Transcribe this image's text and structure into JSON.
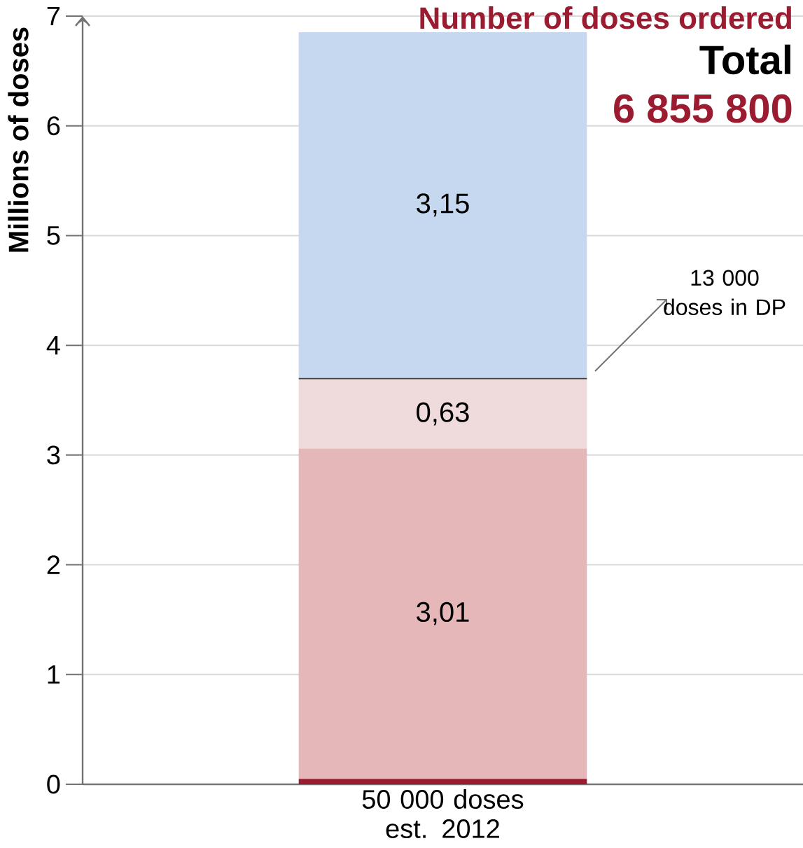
{
  "chart_data": {
    "type": "bar",
    "title": "Number of doses ordered",
    "ylabel": "Millions of doses",
    "categories": [
      "50 000 doses est. 2012"
    ],
    "series": [
      {
        "color": "#9b1c31",
        "values": [
          0.05
        ],
        "value_labels": [
          null
        ]
      },
      {
        "color": "#e5b7b8",
        "values": [
          3.01
        ],
        "value_labels": [
          "3,01"
        ]
      },
      {
        "color": "#f0dbdc",
        "values": [
          0.63
        ],
        "value_labels": [
          "0,63"
        ]
      },
      {
        "color": "#404040",
        "values": [
          0.013
        ],
        "value_labels": [
          null
        ]
      },
      {
        "color": "#c5d8ef",
        "values": [
          3.15
        ],
        "value_labels": [
          "3,15"
        ]
      }
    ],
    "stacked": true,
    "ylim": [
      0,
      7
    ],
    "yticks": [
      0,
      1,
      2,
      3,
      4,
      5,
      6,
      7
    ],
    "grid": "y",
    "annotations": [
      "Total",
      "6 855 800",
      "13 000 doses in DP"
    ]
  }
}
